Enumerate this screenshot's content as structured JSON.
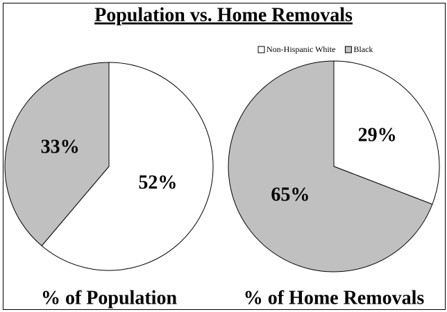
{
  "title": "Population vs. Home Removals",
  "chart_data": [
    {
      "type": "pie",
      "title": "% of Population",
      "categories": [
        "Non-Hispanic White",
        "Black"
      ],
      "values": [
        52,
        33
      ],
      "value_labels": [
        "52%",
        "33%"
      ],
      "colors": [
        "#ffffff",
        "#c0c0c0"
      ]
    },
    {
      "type": "pie",
      "title": "% of Home Removals",
      "categories": [
        "Non-Hispanic White",
        "Black"
      ],
      "values": [
        29,
        65
      ],
      "value_labels": [
        "29%",
        "65%"
      ],
      "colors": [
        "#ffffff",
        "#c0c0c0"
      ]
    }
  ]
}
